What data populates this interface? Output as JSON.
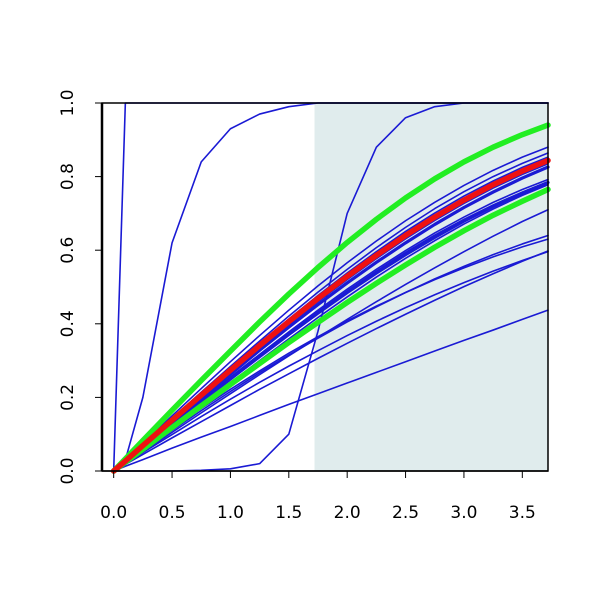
{
  "chart_data": {
    "type": "line",
    "title": "",
    "xlabel": "",
    "ylabel": "",
    "xlim": [
      -0.1,
      3.72
    ],
    "ylim": [
      0,
      1
    ],
    "x_ticks": [
      0.0,
      0.5,
      1.0,
      1.5,
      2.0,
      2.5,
      3.0,
      3.5
    ],
    "x_tick_labels": [
      "0.0",
      "0.5",
      "1.0",
      "1.5",
      "2.0",
      "2.5",
      "3.0",
      "3.5"
    ],
    "y_ticks": [
      0.0,
      0.2,
      0.4,
      0.6,
      0.8,
      1.0
    ],
    "y_tick_labels": [
      "0.0",
      "0.2",
      "0.4",
      "0.6",
      "0.8",
      "1.0"
    ],
    "grid": false,
    "shaded_region": {
      "x_from": 1.72,
      "x_to": 3.72,
      "color": "#e0eced"
    },
    "colors": {
      "blue": "#1a1ad4",
      "red": "#ee1111",
      "green": "#22ee22",
      "axis": "#000000"
    },
    "x": [
      0.0,
      0.1,
      0.25,
      0.5,
      0.75,
      1.0,
      1.25,
      1.5,
      1.75,
      2.0,
      2.25,
      2.5,
      2.75,
      3.0,
      3.25,
      3.5,
      3.72
    ],
    "series": [
      {
        "color": "blue",
        "style": "thin",
        "values": [
          0.0,
          1.0,
          1.0,
          1.0,
          1.0,
          1.0,
          1.0,
          1.0,
          1.0,
          1.0,
          1.0,
          1.0,
          1.0,
          1.0,
          1.0,
          1.0,
          1.0
        ]
      },
      {
        "color": "blue",
        "style": "thin",
        "values": [
          0.0,
          0.03,
          0.2,
          0.62,
          0.84,
          0.93,
          0.97,
          0.99,
          1.0,
          1.0,
          1.0,
          1.0,
          1.0,
          1.0,
          1.0,
          1.0,
          1.0
        ]
      },
      {
        "color": "blue",
        "style": "thin",
        "values": [
          0.0,
          0.0,
          0.0,
          0.0,
          0.002,
          0.006,
          0.02,
          0.1,
          0.38,
          0.7,
          0.88,
          0.96,
          0.99,
          1.0,
          1.0,
          1.0,
          1.0
        ]
      },
      {
        "color": "blue",
        "style": "thin",
        "values": [
          0.0,
          0.013,
          0.031,
          0.062,
          0.092,
          0.121,
          0.151,
          0.181,
          0.21,
          0.239,
          0.268,
          0.297,
          0.326,
          0.355,
          0.383,
          0.412,
          0.437
        ]
      },
      {
        "color": "blue",
        "style": "thin",
        "values": [
          0.0,
          0.018,
          0.045,
          0.09,
          0.134,
          0.178,
          0.222,
          0.264,
          0.306,
          0.347,
          0.387,
          0.426,
          0.464,
          0.501,
          0.536,
          0.57,
          0.598
        ]
      },
      {
        "color": "blue",
        "style": "thin",
        "values": [
          0.0,
          0.02,
          0.05,
          0.099,
          0.148,
          0.195,
          0.241,
          0.285,
          0.327,
          0.368,
          0.407,
          0.444,
          0.479,
          0.512,
          0.543,
          0.572,
          0.596
        ]
      },
      {
        "color": "blue",
        "style": "thin",
        "values": [
          0.0,
          0.022,
          0.055,
          0.11,
          0.164,
          0.216,
          0.267,
          0.315,
          0.361,
          0.405,
          0.446,
          0.485,
          0.522,
          0.556,
          0.588,
          0.617,
          0.64
        ]
      },
      {
        "color": "blue",
        "style": "thin",
        "values": [
          0.0,
          0.023,
          0.058,
          0.115,
          0.17,
          0.222,
          0.272,
          0.32,
          0.365,
          0.408,
          0.448,
          0.485,
          0.52,
          0.552,
          0.582,
          0.609,
          0.63
        ]
      },
      {
        "color": "blue",
        "style": "thin",
        "values": [
          0.0,
          0.021,
          0.052,
          0.105,
          0.158,
          0.21,
          0.262,
          0.313,
          0.363,
          0.412,
          0.46,
          0.507,
          0.552,
          0.596,
          0.638,
          0.678,
          0.71
        ]
      },
      {
        "color": "blue",
        "style": "thin",
        "values": [
          0.0,
          0.025,
          0.062,
          0.125,
          0.188,
          0.25,
          0.312,
          0.373,
          0.432,
          0.489,
          0.543,
          0.594,
          0.641,
          0.684,
          0.723,
          0.758,
          0.786
        ]
      },
      {
        "color": "blue",
        "style": "thin",
        "values": [
          0.0,
          0.024,
          0.06,
          0.12,
          0.18,
          0.24,
          0.3,
          0.359,
          0.417,
          0.473,
          0.527,
          0.578,
          0.626,
          0.671,
          0.712,
          0.749,
          0.778
        ]
      },
      {
        "color": "blue",
        "style": "thin",
        "values": [
          0.0,
          0.026,
          0.064,
          0.128,
          0.192,
          0.255,
          0.317,
          0.378,
          0.437,
          0.494,
          0.548,
          0.599,
          0.647,
          0.69,
          0.73,
          0.765,
          0.792
        ]
      },
      {
        "color": "blue",
        "style": "thin",
        "values": [
          0.0,
          0.028,
          0.07,
          0.14,
          0.21,
          0.279,
          0.347,
          0.413,
          0.477,
          0.538,
          0.596,
          0.651,
          0.701,
          0.747,
          0.788,
          0.825,
          0.853
        ]
      },
      {
        "color": "blue",
        "style": "thin",
        "values": [
          0.0,
          0.029,
          0.072,
          0.143,
          0.214,
          0.284,
          0.353,
          0.421,
          0.486,
          0.548,
          0.607,
          0.662,
          0.713,
          0.759,
          0.8,
          0.836,
          0.864
        ]
      },
      {
        "color": "blue",
        "style": "thin",
        "values": [
          0.0,
          0.03,
          0.075,
          0.15,
          0.224,
          0.297,
          0.368,
          0.437,
          0.503,
          0.566,
          0.625,
          0.68,
          0.73,
          0.776,
          0.817,
          0.853,
          0.88
        ]
      },
      {
        "color": "blue",
        "style": "thin",
        "values": [
          0.0,
          0.027,
          0.068,
          0.135,
          0.202,
          0.268,
          0.334,
          0.398,
          0.46,
          0.52,
          0.577,
          0.631,
          0.681,
          0.727,
          0.769,
          0.806,
          0.835
        ]
      },
      {
        "color": "blue",
        "style": "thick",
        "values": [
          0.0,
          0.027,
          0.066,
          0.132,
          0.198,
          0.263,
          0.328,
          0.391,
          0.452,
          0.511,
          0.567,
          0.62,
          0.67,
          0.716,
          0.758,
          0.796,
          0.826
        ]
      },
      {
        "color": "blue",
        "style": "thick",
        "values": [
          0.0,
          0.025,
          0.063,
          0.126,
          0.188,
          0.25,
          0.311,
          0.371,
          0.429,
          0.485,
          0.538,
          0.588,
          0.635,
          0.679,
          0.719,
          0.755,
          0.784
        ]
      },
      {
        "color": "green",
        "style": "bold",
        "values": [
          0.0,
          0.033,
          0.083,
          0.165,
          0.246,
          0.326,
          0.405,
          0.481,
          0.553,
          0.621,
          0.684,
          0.742,
          0.794,
          0.84,
          0.88,
          0.914,
          0.94
        ]
      },
      {
        "color": "green",
        "style": "bold",
        "values": [
          0.0,
          0.024,
          0.059,
          0.118,
          0.177,
          0.235,
          0.292,
          0.349,
          0.404,
          0.458,
          0.51,
          0.56,
          0.608,
          0.653,
          0.695,
          0.733,
          0.765
        ]
      },
      {
        "color": "red",
        "style": "bold",
        "values": [
          0.0,
          0.027,
          0.069,
          0.138,
          0.206,
          0.274,
          0.341,
          0.406,
          0.469,
          0.529,
          0.586,
          0.64,
          0.69,
          0.736,
          0.778,
          0.815,
          0.844
        ]
      }
    ]
  }
}
